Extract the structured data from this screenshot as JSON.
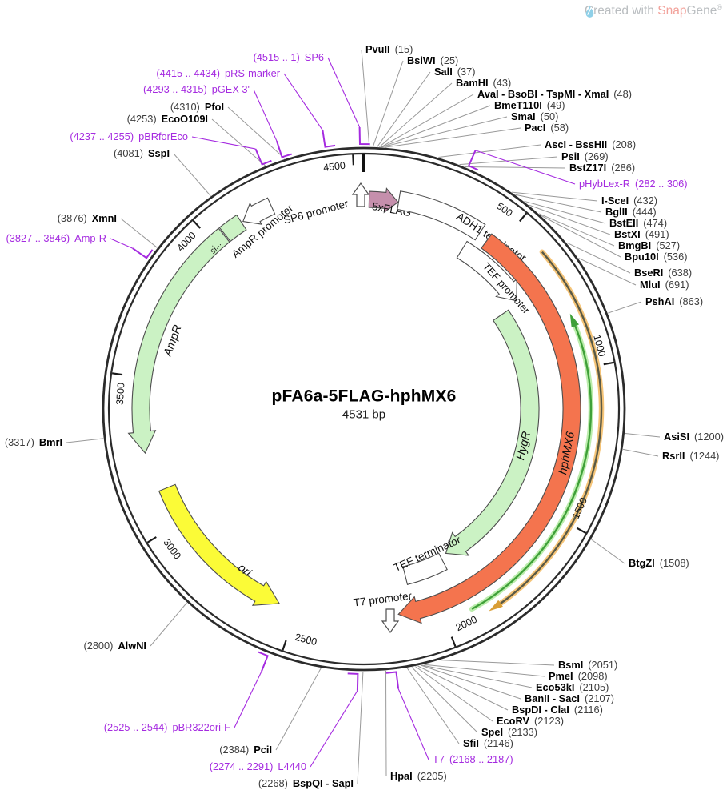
{
  "watermark": {
    "prefix": "Created with ",
    "brand1": "Snap",
    "brand2": "Gene",
    "registered": "®"
  },
  "plasmid": {
    "name": "pFA6a-5FLAG-hphMX6",
    "size_label": "4531 bp",
    "length_bp": 4531
  },
  "ticks": [
    {
      "bp": 500,
      "label": "500"
    },
    {
      "bp": 1000,
      "label": "1000"
    },
    {
      "bp": 1500,
      "label": "1500"
    },
    {
      "bp": 2000,
      "label": "2000"
    },
    {
      "bp": 2500,
      "label": "2500"
    },
    {
      "bp": 3000,
      "label": "3000"
    },
    {
      "bp": 3500,
      "label": "3500"
    },
    {
      "bp": 4000,
      "label": "4000"
    },
    {
      "bp": 4500,
      "label": "4500"
    }
  ],
  "features": [
    {
      "id": "sp6-promoter",
      "label": "SP6 promoter",
      "kind": "promoter-glyph"
    },
    {
      "id": "5xflag",
      "label": "5xFLAG",
      "kind": "arrow",
      "bp_start": 18,
      "bp_end": 118,
      "direction": "cw",
      "fill": "#C58FAC"
    },
    {
      "id": "adh1-terminator",
      "label": "ADH1 terminator",
      "kind": "box",
      "bp_start": 120,
      "bp_end": 420,
      "fill": "#FFFFFF"
    },
    {
      "id": "tef-promoter",
      "label": "TEF promoter",
      "kind": "arrow",
      "bp_start": 398,
      "bp_end": 688,
      "direction": "cw",
      "fill": "#FFFFFF"
    },
    {
      "id": "hphmx6",
      "label": "hphMX6",
      "kind": "arrow",
      "bp_start": 455,
      "bp_end": 2145,
      "direction": "cw",
      "fill": "#F4744E",
      "italic": true
    },
    {
      "id": "hygr",
      "label": "HygR",
      "kind": "arrow",
      "bp_start": 700,
      "bp_end": 1893,
      "direction": "cw",
      "fill": "#CBF2C4",
      "italic": true
    },
    {
      "id": "tef-terminator",
      "label": "TEF terminator",
      "kind": "box",
      "bp_start": 1920,
      "bp_end": 2090,
      "fill": "#FFFFFF"
    },
    {
      "id": "t7-promoter",
      "label": "T7 promoter",
      "kind": "promoter-glyph"
    },
    {
      "id": "ori",
      "label": "ori",
      "kind": "arrow",
      "bp_start": 2562,
      "bp_end": 3124,
      "direction": "ccw",
      "fill": "#FBFB37",
      "italic": true
    },
    {
      "id": "ampr",
      "label": "AmpR",
      "kind": "arrow",
      "bp_start": 3255,
      "bp_end": 4042,
      "direction": "ccw",
      "fill": "#CBF2C4",
      "italic": true
    },
    {
      "id": "ampr-signal",
      "label": "si...",
      "kind": "box",
      "bp_start": 4046,
      "bp_end": 4112,
      "fill": "#CBF2C4",
      "italic": true
    },
    {
      "id": "ampr-promoter",
      "label": "AmpR promoter",
      "kind": "arrow",
      "bp_start": 4118,
      "bp_end": 4222,
      "direction": "ccw",
      "fill": "#FFFFFF"
    },
    {
      "id": "inner-green-arc",
      "label": "",
      "kind": "thin-arc",
      "bp_start": 848,
      "bp_end": 1908,
      "direction": "ccw"
    },
    {
      "id": "inner-tan-arc",
      "label": "",
      "kind": "thin-arc",
      "bp_start": 612,
      "bp_end": 1838,
      "direction": "cw"
    }
  ],
  "enzymes": [
    {
      "name": "PvuII",
      "site": "15",
      "bp": 15
    },
    {
      "name": "BsiWI",
      "site": "25",
      "bp": 25
    },
    {
      "name": "SalI",
      "site": "37",
      "bp": 37
    },
    {
      "name": "BamHI",
      "site": "43",
      "bp": 43
    },
    {
      "name": "AvaI - BsoBI - TspMI - XmaI",
      "site": "48",
      "bp": 48
    },
    {
      "name": "BmeT110I",
      "site": "49",
      "bp": 49
    },
    {
      "name": "SmaI",
      "site": "50",
      "bp": 50
    },
    {
      "name": "PacI",
      "site": "58",
      "bp": 58
    },
    {
      "name": "AscI - BssHII",
      "site": "208",
      "bp": 208
    },
    {
      "name": "PsiI",
      "site": "269",
      "bp": 269
    },
    {
      "name": "BstZ17I",
      "site": "286",
      "bp": 286
    },
    {
      "name": "I-SceI",
      "site": "432",
      "bp": 432
    },
    {
      "name": "BglII",
      "site": "444",
      "bp": 444
    },
    {
      "name": "BstEII",
      "site": "474",
      "bp": 474
    },
    {
      "name": "BstXI",
      "site": "491",
      "bp": 491
    },
    {
      "name": "BmgBI",
      "site": "527",
      "bp": 527
    },
    {
      "name": "Bpu10I",
      "site": "536",
      "bp": 536
    },
    {
      "name": "BseRI",
      "site": "638",
      "bp": 638
    },
    {
      "name": "MluI",
      "site": "691",
      "bp": 691
    },
    {
      "name": "PshAI",
      "site": "863",
      "bp": 863
    },
    {
      "name": "AsiSI",
      "site": "1200",
      "bp": 1200
    },
    {
      "name": "RsrII",
      "site": "1244",
      "bp": 1244
    },
    {
      "name": "BtgZI",
      "site": "1508",
      "bp": 1508
    },
    {
      "name": "BsmI",
      "site": "2051",
      "bp": 2051
    },
    {
      "name": "PmeI",
      "site": "2098",
      "bp": 2098
    },
    {
      "name": "Eco53kI",
      "site": "2105",
      "bp": 2105
    },
    {
      "name": "BanII - SacI",
      "site": "2107",
      "bp": 2107
    },
    {
      "name": "BspDI - ClaI",
      "site": "2116",
      "bp": 2116
    },
    {
      "name": "EcoRV",
      "site": "2123",
      "bp": 2123
    },
    {
      "name": "SpeI",
      "site": "2133",
      "bp": 2133
    },
    {
      "name": "SfiI",
      "site": "2146",
      "bp": 2146
    },
    {
      "name": "HpaI",
      "site": "2205",
      "bp": 2205
    },
    {
      "name": "BspQI - SapI",
      "site": "2268",
      "bp": 2268
    },
    {
      "name": "PciI",
      "site": "2384",
      "bp": 2384
    },
    {
      "name": "AlwNI",
      "site": "2800",
      "bp": 2800
    },
    {
      "name": "BmrI",
      "site": "3317",
      "bp": 3317
    },
    {
      "name": "XmnI",
      "site": "3876",
      "bp": 3876
    },
    {
      "name": "SspI",
      "site": "4081",
      "bp": 4081
    },
    {
      "name": "EcoO109I",
      "site": "4253",
      "bp": 4253
    },
    {
      "name": "PfoI",
      "site": "4310",
      "bp": 4310
    }
  ],
  "primers": [
    {
      "name": "SP6",
      "range": "4515 .. 1",
      "bp": 4520
    },
    {
      "name": "pRS-marker",
      "range": "4415 .. 4434",
      "bp": 4425
    },
    {
      "name": "pGEX 3'",
      "range": "4293 .. 4315",
      "bp": 4304
    },
    {
      "name": "pBRforEco",
      "range": "4237 .. 4255",
      "bp": 4246
    },
    {
      "name": "Amp-R",
      "range": "3827 .. 3846",
      "bp": 3836
    },
    {
      "name": "pHybLex-R",
      "range": "282 .. 306",
      "bp": 294
    },
    {
      "name": "T7",
      "range": "2168 .. 2187",
      "bp": 2177
    },
    {
      "name": "L4440",
      "range": "2274 .. 2291",
      "bp": 2282
    },
    {
      "name": "pBR322ori-F",
      "range": "2525 .. 2544",
      "bp": 2534
    }
  ],
  "colors": {
    "backbone": "#2b2b2b",
    "leader": "#999999",
    "purple": "#A52BE0",
    "enzyme_name": "#000000",
    "enzyme_site": "#3d3d3d",
    "feature_stroke": "#4d4d4d",
    "thin_green": "#3FA039",
    "thin_green_halo": "#BCEDAD",
    "thin_tan_core": "#5a5a46",
    "thin_tan_halo": "#F5C478",
    "thin_tan_tip": "#D99E35",
    "watermark_blue": "#8FD0E8"
  }
}
